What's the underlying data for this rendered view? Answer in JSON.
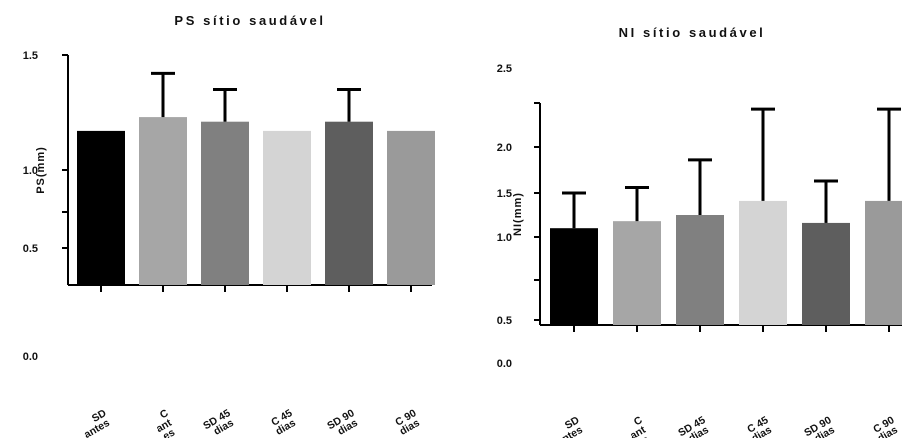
{
  "chart_data": [
    {
      "type": "bar",
      "title": "PS sítio saudável",
      "ylabel": "PS(mm)",
      "categories": [
        [
          "SD",
          "antes"
        ],
        [
          "C",
          "ant",
          "es"
        ],
        [
          "SD 45",
          "dias"
        ],
        [
          "C 45",
          "dias"
        ],
        [
          "SD 90",
          "dias"
        ],
        [
          "C 90",
          "dias"
        ]
      ],
      "values": [
        1.17,
        1.23,
        1.21,
        1.17,
        1.21,
        1.17
      ],
      "errors": [
        0,
        0.19,
        0.14,
        0,
        0.14,
        0
      ],
      "colors": [
        "#000000",
        "#a6a6a6",
        "#808080",
        "#d4d4d4",
        "#5e5e5e",
        "#9a9a9a"
      ],
      "yticks": [
        {
          "label": "1.5",
          "value": 1.5
        },
        {
          "label": "1.0",
          "value": 1.0
        },
        {
          "label": "0.5",
          "value": 0.5
        },
        {
          "label": "0.0",
          "value": 0.0
        }
      ],
      "ylim": [
        0,
        1.5
      ],
      "grid": false,
      "legend": "none"
    },
    {
      "type": "bar",
      "title": "NI sítio saudável",
      "ylabel": "NI(mm)",
      "categories": [
        [
          "SD",
          "antes"
        ],
        [
          "C",
          "ant",
          "es"
        ],
        [
          "SD 45",
          "dias"
        ],
        [
          "C 45",
          "dias"
        ],
        [
          "SD 90",
          "dias"
        ],
        [
          "C 90",
          "dias"
        ]
      ],
      "values": [
        1.1,
        1.18,
        1.25,
        1.41,
        1.16,
        1.41
      ],
      "errors": [
        0.4,
        0.38,
        0.61,
        0.83,
        0.47,
        0.83
      ],
      "colors": [
        "#000000",
        "#a6a6a6",
        "#808080",
        "#d4d4d4",
        "#5e5e5e",
        "#9a9a9a"
      ],
      "yticks": [
        {
          "label": "2.5",
          "value": 2.5
        },
        {
          "label": "2.0",
          "value": 2.0
        },
        {
          "label": "1.5",
          "value": 1.5
        },
        {
          "label": "1.0",
          "value": 1.0
        },
        {
          "label": "0.5",
          "value": 0.5
        },
        {
          "label": "0.0",
          "value": 0.0
        }
      ],
      "ylim": [
        0,
        2.5
      ],
      "grid": false,
      "legend": "none"
    }
  ]
}
